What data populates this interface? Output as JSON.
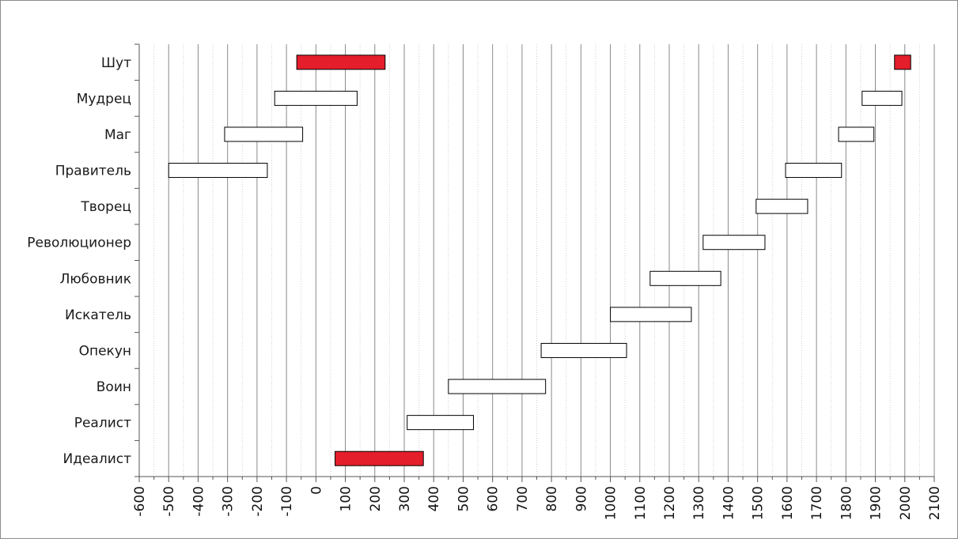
{
  "chart_data": {
    "type": "bar",
    "subtype": "floating-range-gantt",
    "title": "",
    "xlabel": "",
    "ylabel": "",
    "xlim": [
      -600,
      2100
    ],
    "x_tick_step": 100,
    "x_minor_step": 50,
    "x_tick_labels": [
      "-600",
      "-500",
      "-400",
      "-300",
      "-200",
      "-100",
      "0",
      "100",
      "200",
      "300",
      "400",
      "500",
      "600",
      "700",
      "800",
      "900",
      "1000",
      "1100",
      "1200",
      "1300",
      "1400",
      "1500",
      "1600",
      "1700",
      "1800",
      "1900",
      "2000",
      "2100"
    ],
    "grid": "vertical",
    "legend": "none",
    "categories": [
      "Шут",
      "Мудрец",
      "Маг",
      "Правитель",
      "Творец",
      "Революционер",
      "Любовник",
      "Искатель",
      "Опекун",
      "Воин",
      "Реалист",
      "Идеалист"
    ],
    "bars": [
      {
        "category": "Шут",
        "start": -65,
        "end": 235,
        "highlight": true
      },
      {
        "category": "Шут",
        "start": 1965,
        "end": 2020,
        "highlight": true
      },
      {
        "category": "Мудрец",
        "start": -140,
        "end": 140,
        "highlight": false
      },
      {
        "category": "Мудрец",
        "start": 1855,
        "end": 1990,
        "highlight": false
      },
      {
        "category": "Маг",
        "start": -310,
        "end": -45,
        "highlight": false
      },
      {
        "category": "Маг",
        "start": 1775,
        "end": 1895,
        "highlight": false
      },
      {
        "category": "Правитель",
        "start": -500,
        "end": -165,
        "highlight": false
      },
      {
        "category": "Правитель",
        "start": 1595,
        "end": 1785,
        "highlight": false
      },
      {
        "category": "Творец",
        "start": 1495,
        "end": 1670,
        "highlight": false
      },
      {
        "category": "Революционер",
        "start": 1315,
        "end": 1525,
        "highlight": false
      },
      {
        "category": "Любовник",
        "start": 1135,
        "end": 1375,
        "highlight": false
      },
      {
        "category": "Искатель",
        "start": 1000,
        "end": 1275,
        "highlight": false
      },
      {
        "category": "Опекун",
        "start": 765,
        "end": 1055,
        "highlight": false
      },
      {
        "category": "Воин",
        "start": 450,
        "end": 780,
        "highlight": false
      },
      {
        "category": "Реалист",
        "start": 310,
        "end": 535,
        "highlight": false
      },
      {
        "category": "Идеалист",
        "start": 65,
        "end": 365,
        "highlight": true
      }
    ],
    "colors": {
      "highlight_fill": "#e41e2b",
      "normal_fill": "#ffffff",
      "bar_stroke": "#000000",
      "major_grid": "#8a8a8a",
      "minor_grid": "#cfcfcf",
      "axis": "#555555"
    }
  }
}
